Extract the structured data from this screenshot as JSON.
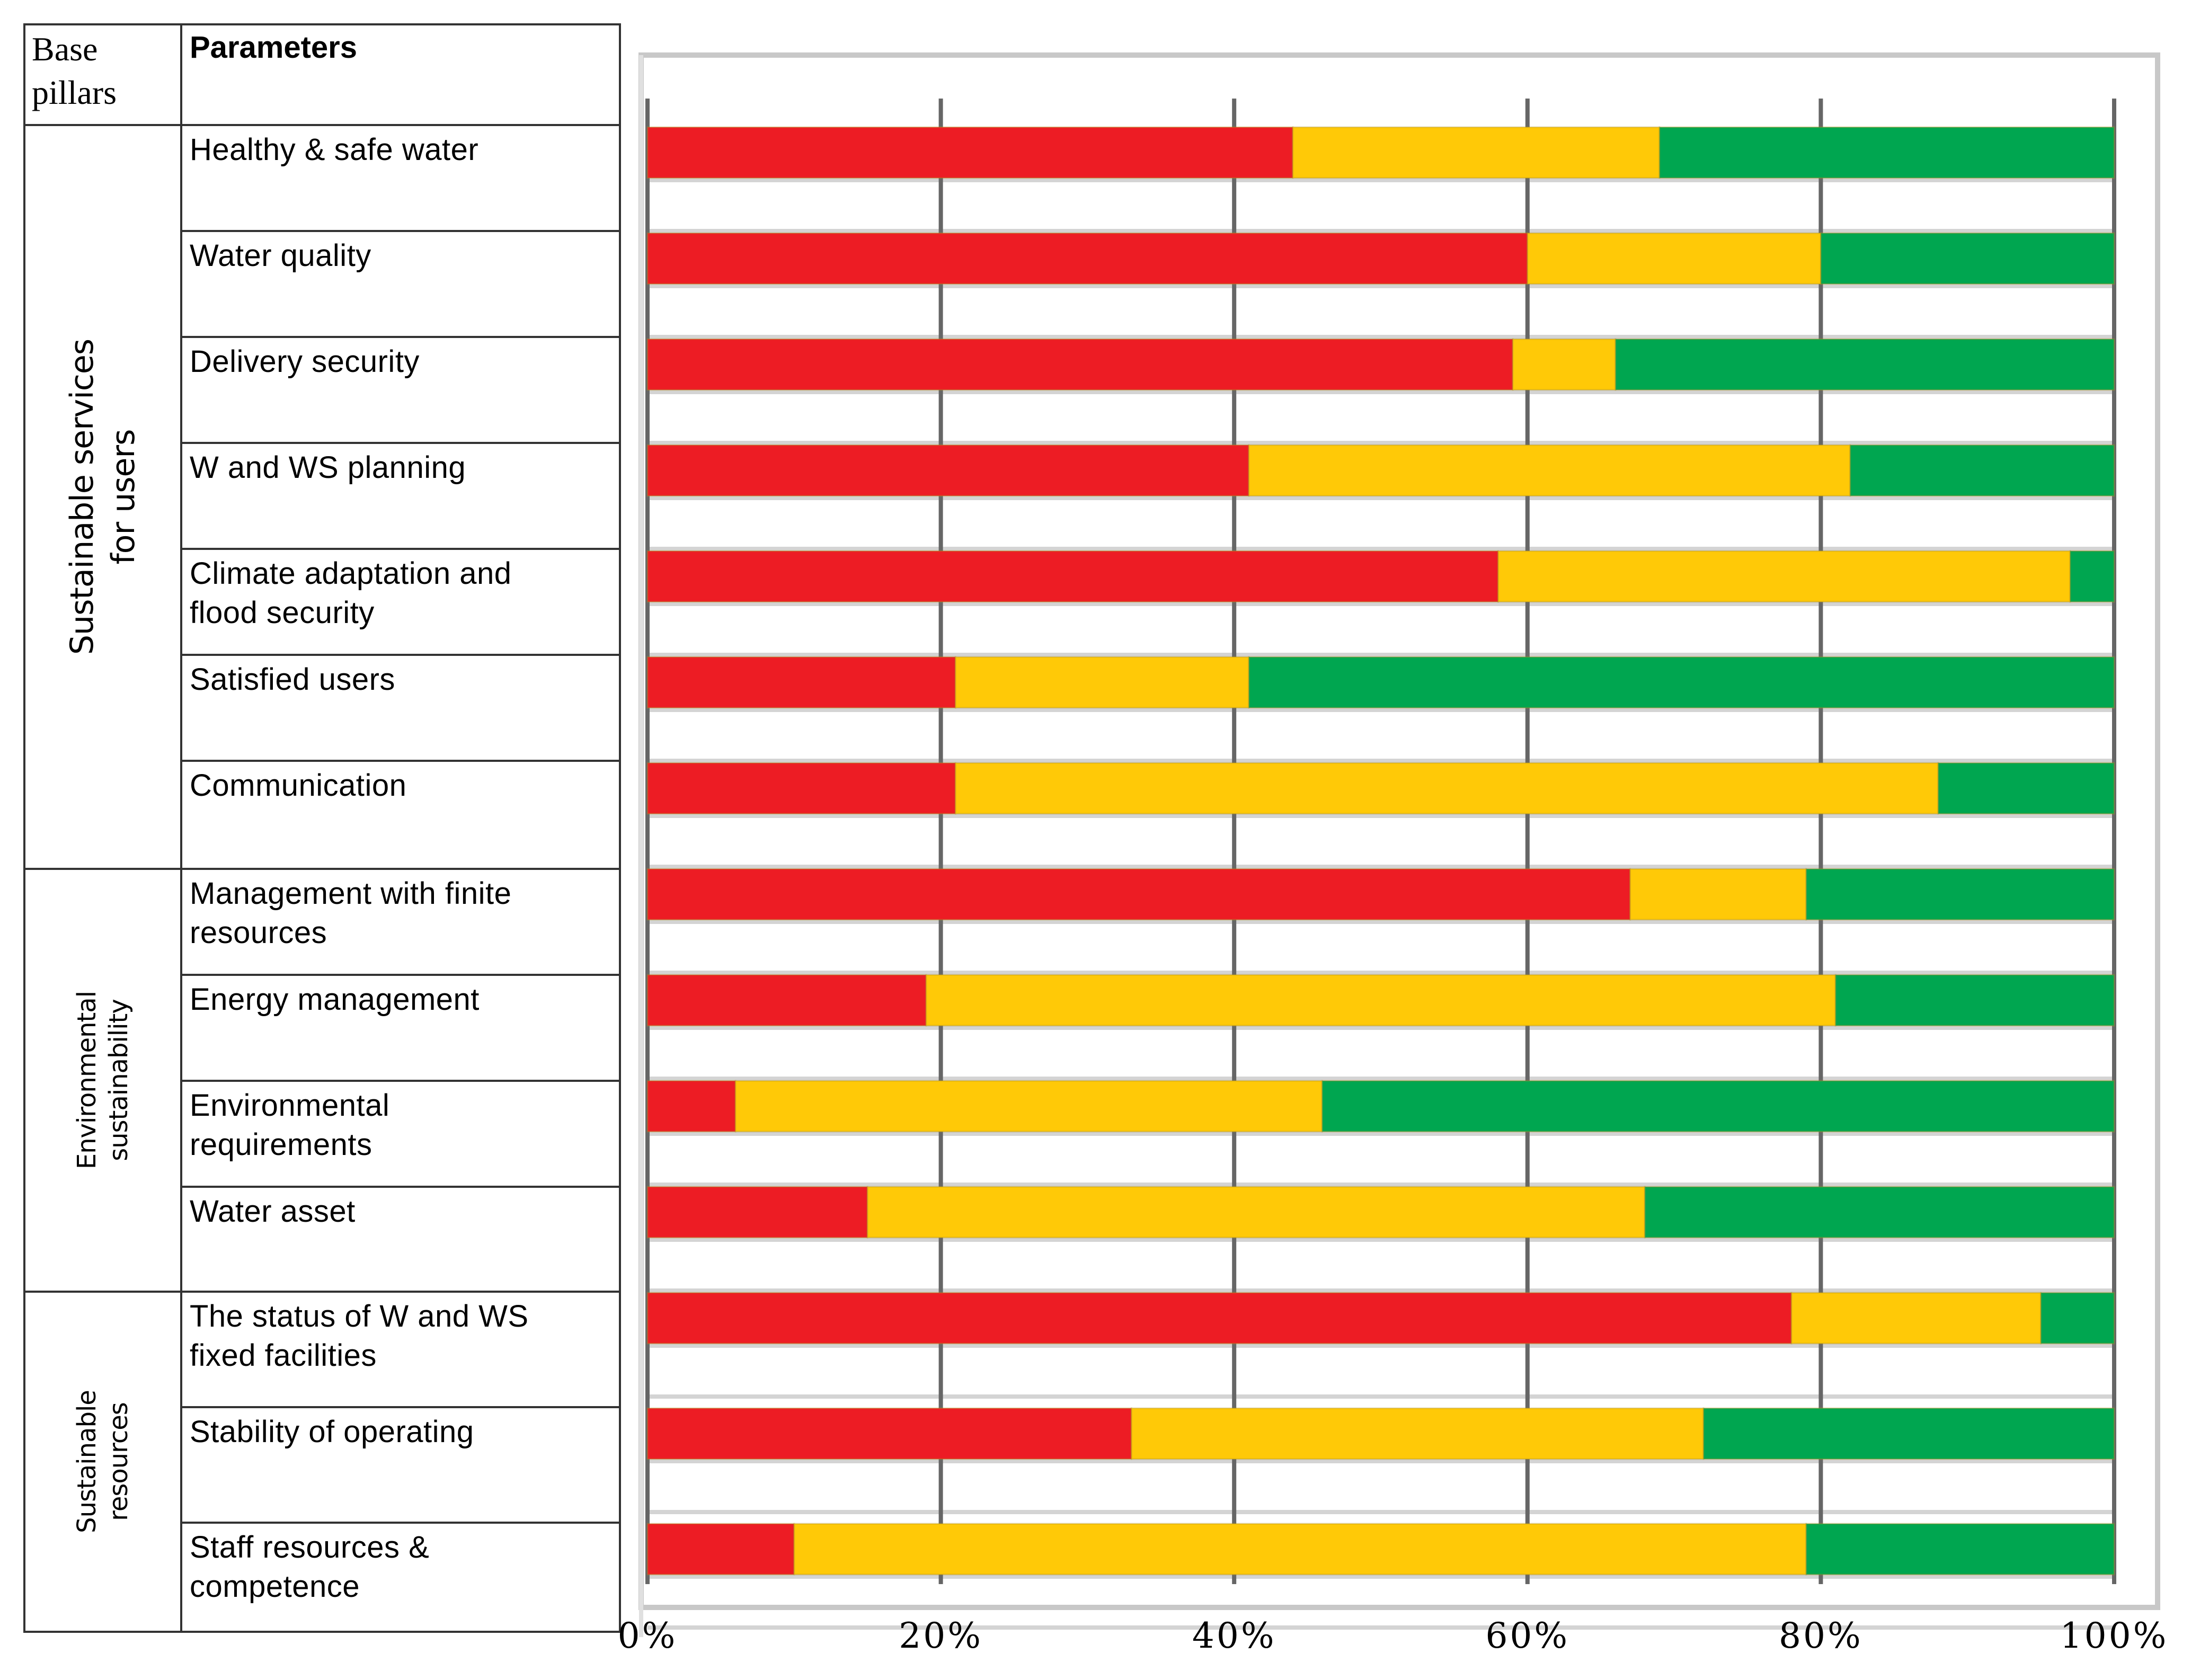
{
  "table": {
    "header": {
      "base": "Base pillars",
      "base_line1": "Base",
      "base_line2": "pillars",
      "parameters": "Parameters"
    },
    "pillars": [
      {
        "label_line1": "Sustainable services",
        "label_line2": "for users"
      },
      {
        "label_line1": "Environmental",
        "label_line2": "sustainability"
      },
      {
        "label_line1": "Sustainable",
        "label_line2": "resources"
      }
    ],
    "parameters": [
      {
        "line1": "Healthy & safe water",
        "line2": ""
      },
      {
        "line1": "Water quality",
        "line2": ""
      },
      {
        "line1": "Delivery security",
        "line2": ""
      },
      {
        "line1": "W and WS  planning",
        "line2": ""
      },
      {
        "line1": "Climate adaptation  and",
        "line2": "flood security"
      },
      {
        "line1": "Satisfied users",
        "line2": ""
      },
      {
        "line1": "Communication",
        "line2": ""
      },
      {
        "line1": "Management with finite",
        "line2": "resources"
      },
      {
        "line1": "Energy management",
        "line2": ""
      },
      {
        "line1": "Environmental",
        "line2": "requirements"
      },
      {
        "line1": "Water asset",
        "line2": ""
      },
      {
        "line1": "The status of W and WS",
        "line2": "fixed facilities"
      },
      {
        "line1": "Stability of operating",
        "line2": ""
      },
      {
        "line1": "Staff resources &",
        "line2": "competence"
      }
    ]
  },
  "chart_data": {
    "type": "bar",
    "orientation": "horizontal",
    "stacked": true,
    "title": "",
    "xlabel": "",
    "ylabel": "",
    "xlim": [
      0,
      100
    ],
    "x_ticks": [
      "0%",
      "20%",
      "40%",
      "60%",
      "80%",
      "100%"
    ],
    "grid": true,
    "legend": "none",
    "categories": [
      "Healthy & safe water",
      "Water quality",
      "Delivery security",
      "W and WS  planning",
      "Climate adaptation  and flood security",
      "Satisfied users",
      "Communication",
      "Management with finite resources",
      "Energy management",
      "Environmental requirements",
      "Water asset",
      "The status of W and WS fixed facilities",
      "Stability of operating",
      "Staff resources & competence"
    ],
    "series": [
      {
        "name": "red",
        "color": "#ed1c24",
        "values": [
          44,
          60,
          59,
          41,
          58,
          21,
          21,
          67,
          19,
          6,
          15,
          78,
          33,
          10
        ]
      },
      {
        "name": "yellow",
        "color": "#ffc907",
        "values": [
          25,
          20,
          7,
          41,
          39,
          20,
          67,
          12,
          62,
          40,
          53,
          17,
          39,
          69
        ]
      },
      {
        "name": "green",
        "color": "#00a650",
        "values": [
          31,
          20,
          34,
          18,
          3,
          59,
          12,
          21,
          19,
          54,
          32,
          5,
          28,
          21
        ]
      }
    ]
  }
}
